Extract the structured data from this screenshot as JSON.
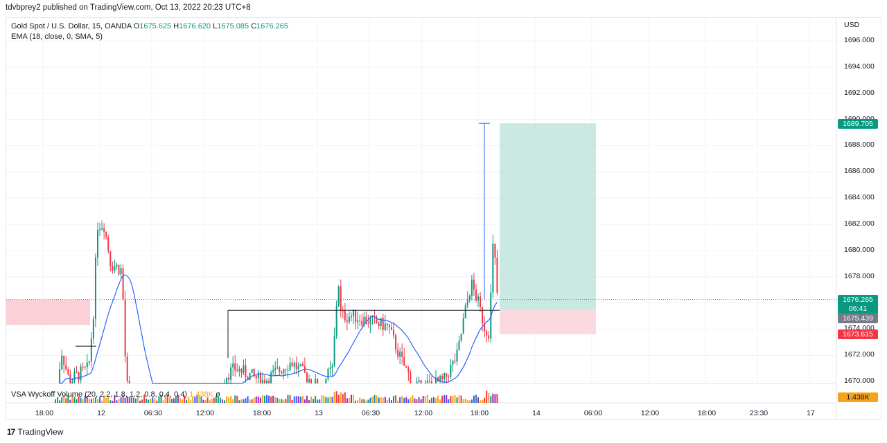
{
  "publish_line": "tdvbprey2 published on TradingView.com, Oct 13, 2022 20:23 UTC+8",
  "symbol_line": {
    "name": "Gold Spot / U.S. Dollar, 15, OANDA",
    "o_label": "O",
    "o_value": "1675.625",
    "h_label": "H",
    "h_value": "1676.620",
    "l_label": "L",
    "l_value": "1675.085",
    "c_label": "C",
    "c_value": "1676.265"
  },
  "ema_line": "EMA (18, close, 0, SMA, 5)",
  "vsa_legend": {
    "label": "VSA Wyckoff Volume (20, 2.2, 1.8, 1.2, 0.8, 0.4, 0.4)",
    "value": "1.438K",
    "extra": "ø"
  },
  "currency": "USD",
  "price_axis": [
    "1696.000",
    "1694.000",
    "1692.000",
    "1690.000",
    "1688.000",
    "1686.000",
    "1684.000",
    "1682.000",
    "1680.000",
    "1678.000",
    "1676.000",
    "1674.000",
    "1672.000",
    "1670.000"
  ],
  "time_axis": [
    "18:00",
    "12",
    "06:30",
    "12:00",
    "18:00",
    "13",
    "06:30",
    "12:00",
    "18:00",
    "14",
    "06:00",
    "12:00",
    "18:00",
    "23:30",
    "17"
  ],
  "price_tags": {
    "target": "1689.705",
    "current": "1676.265",
    "countdown": "06:41",
    "entry": "1675.439",
    "stop": "1673.615",
    "volume": "1.438K"
  },
  "colors": {
    "up": "#089981",
    "down": "#f23645",
    "ema": "#2962ff",
    "target_zone": "#b2dfd6",
    "stop_zone": "#fbd0d6",
    "volume_tag": "#f7a21b"
  },
  "footer": {
    "logo": "17",
    "brand": "TradingView"
  },
  "chart_data": {
    "type": "candlestick",
    "title": "Gold Spot / U.S. Dollar, 15, OANDA",
    "ylim": [
      1669.8,
      1697
    ],
    "last_close": 1676.265,
    "position": {
      "entry": 1675.439,
      "target": 1689.705,
      "stop": 1673.615
    },
    "seed": 7
  }
}
